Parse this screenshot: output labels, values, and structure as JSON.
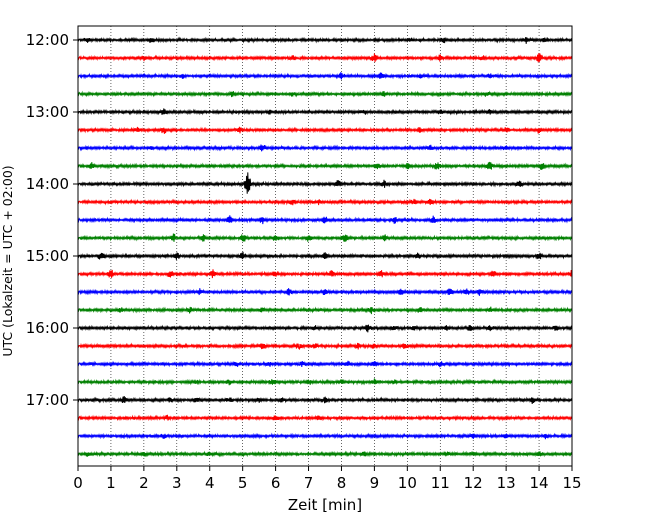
{
  "chart_data": {
    "type": "line",
    "title": "",
    "xlabel": "Zeit  [min]",
    "ylabel": "UTC (Lokalzeit = UTC + 02:00)",
    "xlim": [
      0,
      15
    ],
    "x_ticks": [
      0,
      1,
      2,
      3,
      4,
      5,
      6,
      7,
      8,
      9,
      10,
      11,
      12,
      13,
      14,
      15
    ],
    "x_tick_labels": [
      "0",
      "1",
      "2",
      "3",
      "4",
      "5",
      "6",
      "7",
      "8",
      "9",
      "10",
      "11",
      "12",
      "13",
      "14",
      "15"
    ],
    "y_tick_labels": [
      "12:00",
      "13:00",
      "14:00",
      "15:00",
      "16:00",
      "17:00"
    ],
    "grid": "vertical dotted lines at each minute",
    "trace_colors": [
      "#000000",
      "#ff0000",
      "#0000ff",
      "#008000"
    ],
    "traces": [
      {
        "start": "12:00",
        "color": "#000000",
        "events": [
          [
            0.3,
            2
          ],
          [
            2.2,
            3
          ],
          [
            10.1,
            2
          ],
          [
            11.1,
            3
          ],
          [
            13.6,
            3
          ],
          [
            14.2,
            2
          ]
        ]
      },
      {
        "start": "12:15",
        "color": "#ff0000",
        "events": [
          [
            2.0,
            2
          ],
          [
            6.5,
            2
          ],
          [
            9.0,
            3
          ],
          [
            11.0,
            3
          ],
          [
            12.3,
            2
          ],
          [
            14.0,
            4
          ]
        ]
      },
      {
        "start": "12:30",
        "color": "#0000ff",
        "events": [
          [
            3.2,
            2
          ],
          [
            8.0,
            3
          ],
          [
            9.2,
            3
          ],
          [
            10.4,
            2
          ],
          [
            12.5,
            2
          ]
        ]
      },
      {
        "start": "12:45",
        "color": "#008000",
        "events": [
          [
            4.7,
            3
          ],
          [
            6.5,
            2
          ],
          [
            9.3,
            2
          ],
          [
            12.4,
            2
          ]
        ]
      },
      {
        "start": "13:00",
        "color": "#000000",
        "events": [
          [
            2.6,
            3
          ],
          [
            5.8,
            2
          ],
          [
            8.7,
            2
          ],
          [
            11.0,
            2
          ],
          [
            12.5,
            2
          ]
        ]
      },
      {
        "start": "13:15",
        "color": "#ff0000",
        "events": [
          [
            1.8,
            2
          ],
          [
            2.6,
            3
          ],
          [
            4.9,
            2
          ],
          [
            10.4,
            2
          ],
          [
            13.0,
            3
          ],
          [
            14.0,
            3
          ]
        ]
      },
      {
        "start": "13:30",
        "color": "#0000ff",
        "events": [
          [
            2.2,
            2
          ],
          [
            5.6,
            3
          ],
          [
            10.7,
            2
          ],
          [
            13.0,
            2
          ]
        ]
      },
      {
        "start": "13:45",
        "color": "#008000",
        "events": [
          [
            0.4,
            4
          ],
          [
            9.1,
            4
          ],
          [
            10.0,
            3
          ],
          [
            10.9,
            4
          ],
          [
            12.5,
            4
          ],
          [
            14.1,
            4
          ]
        ]
      },
      {
        "start": "14:00",
        "color": "#000000",
        "events": [
          [
            5.15,
            12
          ],
          [
            7.9,
            3
          ],
          [
            9.3,
            4
          ],
          [
            13.4,
            3
          ]
        ]
      },
      {
        "start": "14:15",
        "color": "#ff0000",
        "events": [
          [
            6.5,
            3
          ],
          [
            7.3,
            2
          ],
          [
            10.2,
            2
          ],
          [
            10.7,
            3
          ]
        ]
      },
      {
        "start": "14:30",
        "color": "#0000ff",
        "events": [
          [
            4.6,
            4
          ],
          [
            5.6,
            3
          ],
          [
            7.5,
            3
          ],
          [
            9.6,
            3
          ],
          [
            10.8,
            3
          ]
        ]
      },
      {
        "start": "14:45",
        "color": "#008000",
        "events": [
          [
            2.9,
            4
          ],
          [
            3.8,
            3
          ],
          [
            5.0,
            4
          ],
          [
            6.0,
            3
          ],
          [
            7.0,
            3
          ],
          [
            8.1,
            3
          ],
          [
            9.3,
            3
          ]
        ]
      },
      {
        "start": "15:00",
        "color": "#000000",
        "events": [
          [
            0.7,
            4
          ],
          [
            3.0,
            3
          ],
          [
            5.0,
            4
          ],
          [
            7.5,
            3
          ],
          [
            10.3,
            3
          ],
          [
            14.0,
            3
          ]
        ]
      },
      {
        "start": "15:15",
        "color": "#ff0000",
        "events": [
          [
            1.0,
            5
          ],
          [
            2.8,
            4
          ],
          [
            4.1,
            4
          ],
          [
            6.0,
            3
          ],
          [
            7.7,
            3
          ],
          [
            9.2,
            3
          ],
          [
            12.6,
            3
          ],
          [
            15.0,
            3
          ]
        ]
      },
      {
        "start": "15:30",
        "color": "#0000ff",
        "events": [
          [
            3.7,
            3
          ],
          [
            6.4,
            3
          ],
          [
            7.5,
            3
          ],
          [
            9.8,
            3
          ],
          [
            11.3,
            3
          ],
          [
            11.8,
            3
          ],
          [
            12.2,
            3
          ]
        ]
      },
      {
        "start": "15:45",
        "color": "#008000",
        "events": [
          [
            1.3,
            2
          ],
          [
            3.4,
            2
          ],
          [
            5.6,
            2
          ],
          [
            8.9,
            3
          ],
          [
            10.4,
            3
          ],
          [
            12.5,
            3
          ]
        ]
      },
      {
        "start": "16:00",
        "color": "#000000",
        "events": [
          [
            7.2,
            2
          ],
          [
            8.8,
            3
          ],
          [
            9.6,
            2
          ],
          [
            10.2,
            2
          ],
          [
            11.2,
            3
          ],
          [
            11.9,
            2
          ],
          [
            12.5,
            2
          ],
          [
            14.5,
            2
          ]
        ]
      },
      {
        "start": "16:15",
        "color": "#ff0000",
        "events": [
          [
            5.6,
            3
          ],
          [
            6.7,
            3
          ],
          [
            7.2,
            2
          ],
          [
            8.5,
            2
          ],
          [
            9.0,
            2
          ],
          [
            9.9,
            2
          ]
        ]
      },
      {
        "start": "16:30",
        "color": "#0000ff",
        "events": [
          [
            4.8,
            2
          ],
          [
            5.8,
            2
          ],
          [
            6.8,
            2
          ],
          [
            8.2,
            2
          ],
          [
            9.0,
            2
          ],
          [
            11.0,
            2
          ]
        ]
      },
      {
        "start": "16:45",
        "color": "#008000",
        "events": [
          [
            3.6,
            2
          ],
          [
            4.6,
            2
          ],
          [
            5.9,
            2
          ],
          [
            7.0,
            3
          ],
          [
            8.0,
            2
          ],
          [
            9.0,
            2
          ],
          [
            9.6,
            2
          ]
        ]
      },
      {
        "start": "17:00",
        "color": "#000000",
        "events": [
          [
            1.4,
            3
          ],
          [
            2.8,
            2
          ],
          [
            3.6,
            2
          ],
          [
            4.6,
            2
          ],
          [
            5.5,
            2
          ],
          [
            6.2,
            2
          ],
          [
            7.5,
            3
          ],
          [
            13.8,
            3
          ]
        ]
      },
      {
        "start": "17:15",
        "color": "#ff0000",
        "events": [
          [
            2.7,
            2
          ],
          [
            6.0,
            2
          ],
          [
            7.3,
            2
          ]
        ]
      },
      {
        "start": "17:30",
        "color": "#0000ff",
        "events": [
          [
            2.6,
            2
          ],
          [
            12.0,
            2
          ],
          [
            13.0,
            2
          ],
          [
            14.2,
            2
          ]
        ]
      },
      {
        "start": "17:45",
        "color": "#008000",
        "events": [
          [
            0.3,
            2
          ],
          [
            2.0,
            2
          ],
          [
            4.0,
            2
          ],
          [
            8.7,
            2
          ],
          [
            11.2,
            2
          ],
          [
            12.0,
            2
          ],
          [
            14.0,
            2
          ]
        ]
      }
    ]
  }
}
